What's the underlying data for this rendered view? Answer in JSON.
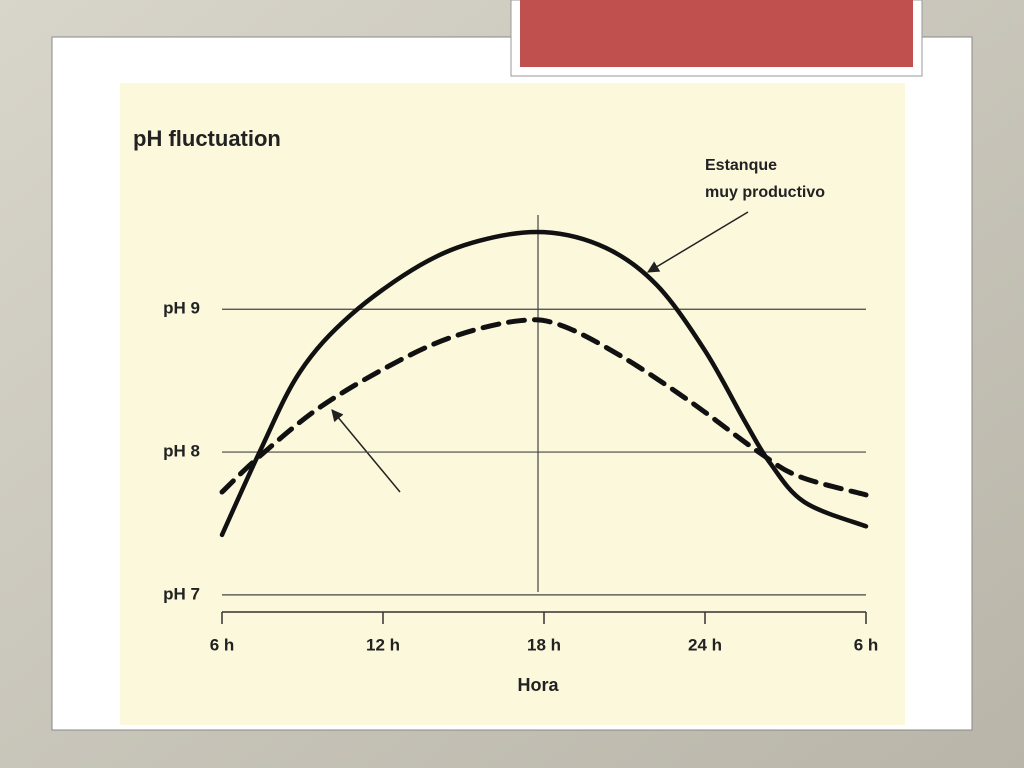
{
  "chart_data": {
    "type": "line",
    "title": "pH fluctuation",
    "x_label": "Hora",
    "annotation": [
      "Estanque",
      "muy productivo"
    ],
    "xlim": [
      6,
      30
    ],
    "xticks": [
      {
        "value": 6,
        "label": "6 h"
      },
      {
        "value": 12,
        "label": "12 h"
      },
      {
        "value": 18,
        "label": "18 h"
      },
      {
        "value": 24,
        "label": "24 h"
      },
      {
        "value": 30,
        "label": "6 h"
      }
    ],
    "ylim": [
      6.88,
      9.66
    ],
    "yticks": [
      {
        "value": 7,
        "label": "pH 7"
      },
      {
        "value": 8,
        "label": "pH 8"
      },
      {
        "value": 9,
        "label": "pH 9"
      }
    ],
    "grid": true,
    "series": [
      {
        "color": "#111111",
        "style": "solid",
        "x": [
          6,
          7.4,
          8.9,
          10.8,
          13.4,
          15.6,
          18,
          20.3,
          22.2,
          24,
          25.5,
          26.4,
          27.7,
          30
        ],
        "values": [
          7.42,
          8.0,
          8.56,
          8.96,
          9.31,
          9.48,
          9.54,
          9.43,
          9.17,
          8.71,
          8.21,
          7.93,
          7.65,
          7.48
        ]
      },
      {
        "color": "#111111",
        "style": "dashed",
        "x": [
          6,
          7.4,
          9.7,
          12.6,
          14.8,
          17.1,
          18.6,
          20.8,
          23.4,
          26,
          27.5,
          30
        ],
        "values": [
          7.72,
          7.97,
          8.32,
          8.64,
          8.82,
          8.92,
          8.89,
          8.68,
          8.36,
          8.0,
          7.83,
          7.7
        ]
      }
    ]
  }
}
